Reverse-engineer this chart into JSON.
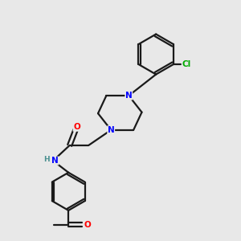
{
  "background_color": "#e8e8e8",
  "bond_color": "#1a1a1a",
  "bond_width": 1.6,
  "atom_colors": {
    "N": "#0000ff",
    "O": "#ff0000",
    "Cl": "#00aa00",
    "H": "#4a9090",
    "C": "#1a1a1a"
  },
  "figsize": [
    3.0,
    3.0
  ],
  "dpi": 100
}
